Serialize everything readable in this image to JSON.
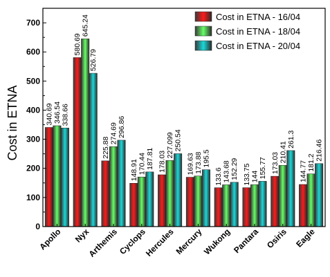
{
  "chart_data": {
    "type": "bar",
    "ylabel": "Cost in ETNA",
    "xlabel": "",
    "ylim": [
      0,
      750
    ],
    "yticks": [
      0,
      100,
      200,
      300,
      400,
      500,
      600,
      700
    ],
    "categories": [
      "Apollo",
      "Nyx",
      "Arthemis",
      "Cyclops",
      "Hercules",
      "Mercury",
      "Wukong",
      "Pantara",
      "Osiris",
      "Eagle"
    ],
    "series": [
      {
        "name": "Cost in ETNA - 16/04",
        "color": "#ff1a1a",
        "values": [
          340.69,
          580.69,
          225.88,
          148.91,
          178.03,
          169.63,
          133.6,
          133.75,
          173.03,
          144.77
        ],
        "labels": [
          "340.69",
          "580.69",
          "225.88",
          "148.91",
          "178.03",
          "169.63",
          "133.6",
          "133.75",
          "173.03",
          "144.77"
        ]
      },
      {
        "name": "Cost in ETNA - 18/04",
        "color": "#66ff66",
        "values": [
          346.54,
          645.24,
          274.69,
          170.44,
          227.099,
          173.88,
          143.68,
          144,
          210.41,
          181.2
        ],
        "labels": [
          "346.54",
          "645.24",
          "274.69",
          "170.44",
          "227.099",
          "173.88",
          "143.68",
          "144",
          "210.41",
          "181.2"
        ]
      },
      {
        "name": "Cost in ETNA - 20/04",
        "color": "#1ad9d9",
        "values": [
          338.66,
          526.79,
          296.86,
          187.81,
          250.54,
          195.5,
          152.29,
          155.77,
          261.3,
          216.46
        ],
        "labels": [
          "338.66",
          "526.79",
          "296.86",
          "187.81",
          "250.54",
          "195.5",
          "152.29",
          "155.77",
          "261.3",
          "216.46"
        ]
      }
    ],
    "legend": "top-right",
    "grid": false
  }
}
